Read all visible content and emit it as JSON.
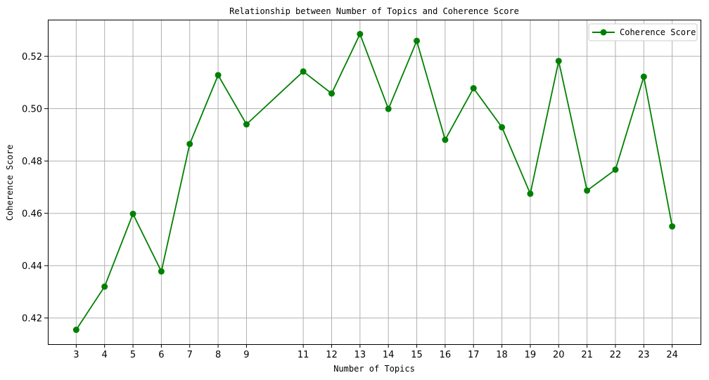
{
  "chart_data": {
    "type": "line",
    "title": "Relationship between Number of Topics and Coherence Score",
    "xlabel": "Number of Topics",
    "ylabel": "Coherence Score",
    "x": [
      3,
      4,
      5,
      6,
      7,
      8,
      9,
      11,
      12,
      13,
      14,
      15,
      16,
      17,
      18,
      19,
      20,
      21,
      22,
      23,
      24
    ],
    "x_ticks": [
      "3",
      "4",
      "5",
      "6",
      "7",
      "8",
      "9",
      "11",
      "12",
      "13",
      "14",
      "15",
      "16",
      "17",
      "18",
      "19",
      "20",
      "21",
      "22",
      "23",
      "24"
    ],
    "xlim": [
      2.0,
      25.0
    ],
    "ylim": [
      0.41,
      0.534
    ],
    "y_ticks": [
      "0.42",
      "0.44",
      "0.46",
      "0.48",
      "0.50",
      "0.52"
    ],
    "y_tick_values": [
      0.42,
      0.44,
      0.46,
      0.48,
      0.5,
      0.52
    ],
    "grid": true,
    "legend_position": "top-right",
    "series": [
      {
        "name": "Coherence Score",
        "color": "#008000",
        "marker": "circle",
        "values": [
          0.4155,
          0.432,
          0.4598,
          0.4378,
          0.4865,
          0.5128,
          0.494,
          0.5142,
          0.5058,
          0.5285,
          0.4999,
          0.5259,
          0.4881,
          0.5078,
          0.4929,
          0.4675,
          0.5182,
          0.4687,
          0.4767,
          0.5122,
          0.455
        ]
      }
    ]
  }
}
